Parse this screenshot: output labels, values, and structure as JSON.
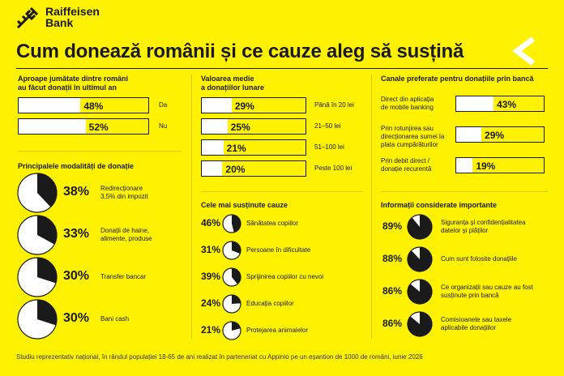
{
  "logo": {
    "line1": "Raiffeisen",
    "line2": "Bank"
  },
  "title": "Cum donează românii și ce cauze aleg să susțină",
  "s1": {
    "title_l1": "Aproape jumătate dintre români",
    "title_l2": "au făcut donații în ultimul an",
    "rows": [
      {
        "value": 48,
        "text": "48%",
        "label": "Da"
      },
      {
        "value": 52,
        "text": "52%",
        "label": "Nu"
      }
    ]
  },
  "s2": {
    "title_l1": "Valoarea medie",
    "title_l2": "a donațiilor lunare",
    "rows": [
      {
        "value": 29,
        "text": "29%",
        "label": "Până în 20 lei"
      },
      {
        "value": 25,
        "text": "25%",
        "label": "21–50 lei"
      },
      {
        "value": 21,
        "text": "21%",
        "label": "51–100 lei"
      },
      {
        "value": 20,
        "text": "20%",
        "label": "Peste 100 lei"
      }
    ]
  },
  "s3": {
    "title": "Canale preferate pentru donațiile prin bancă",
    "rows": [
      {
        "value": 43,
        "text": "43%",
        "l1": "Direct din aplicația",
        "l2": "de mobile banking",
        "l3": ""
      },
      {
        "value": 29,
        "text": "29%",
        "l1": "Prin rotunjirea sau",
        "l2": "direcționarea sumei la",
        "l3": "plata cumpărăturilor"
      },
      {
        "value": 19,
        "text": "19%",
        "l1": "Prin debit direct /",
        "l2": "donație recurentă",
        "l3": ""
      }
    ]
  },
  "s4": {
    "title": "Principalele modalități de donație",
    "rows": [
      {
        "value": 38,
        "text": "38%",
        "l1": "Redirecționare",
        "l2": "3,5% din impozit"
      },
      {
        "value": 33,
        "text": "33%",
        "l1": "Donații de haine,",
        "l2": "alimente, produse"
      },
      {
        "value": 30,
        "text": "30%",
        "l1": "Transfer bancar",
        "l2": ""
      },
      {
        "value": 30,
        "text": "30%",
        "l1": "Bani cash",
        "l2": ""
      }
    ]
  },
  "s5": {
    "title": "Cele mai susținute cauze",
    "rows": [
      {
        "value": 46,
        "text": "46%",
        "l1": "Sănătatea copiilor"
      },
      {
        "value": 31,
        "text": "31%",
        "l1": "Persoane în dificultate"
      },
      {
        "value": 39,
        "text": "39%",
        "l1": "Sprijinirea copiilor cu nevoi"
      },
      {
        "value": 24,
        "text": "24%",
        "l1": "Educația copiilor"
      },
      {
        "value": 21,
        "text": "21%",
        "l1": "Protejarea animalelor"
      }
    ]
  },
  "s6": {
    "title": "Informații considerate importante",
    "rows": [
      {
        "value": 89,
        "text": "89%",
        "l1": "Siguranța și confidențialitatea",
        "l2": "datelor și plăților"
      },
      {
        "value": 88,
        "text": "88%",
        "l1": "Cum sunt folosite donațiile",
        "l2": ""
      },
      {
        "value": 86,
        "text": "86%",
        "l1": "Ce organizații sau cauze au fost",
        "l2": "susținute prin bancă"
      },
      {
        "value": 86,
        "text": "86%",
        "l1": "Comisioanele sau taxele",
        "l2": "aplicabile donațiilor"
      }
    ]
  },
  "footer": "Studiu reprezentativ național, în rândul populației 18-65 de ani realizat în parteneriat cu Appinio pe un eșantion de 1000 de români, iunie 2026",
  "colors": {
    "bg": "#fff200",
    "dark": "#1a1a1a",
    "white": "#ffffff"
  }
}
